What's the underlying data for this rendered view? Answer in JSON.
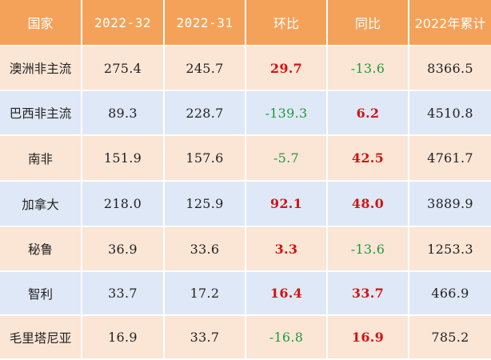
{
  "headers": [
    "国家",
    "2022-32",
    "2022-31",
    "环比",
    "同比",
    "2022年累计"
  ],
  "rows": [
    {
      "country": "澳洲非主流",
      "w32": "275.4",
      "w31": "245.7",
      "wow": "29.7",
      "yoy": "-13.6",
      "ytd": "8366.5",
      "wow_sign": "pos",
      "yoy_sign": "neg"
    },
    {
      "country": "巴西非主流",
      "w32": "89.3",
      "w31": "228.7",
      "wow": "-139.3",
      "yoy": "6.2",
      "ytd": "4510.8",
      "wow_sign": "neg",
      "yoy_sign": "pos"
    },
    {
      "country": "南非",
      "w32": "151.9",
      "w31": "157.6",
      "wow": "-5.7",
      "yoy": "42.5",
      "ytd": "4761.7",
      "wow_sign": "neg",
      "yoy_sign": "pos"
    },
    {
      "country": "加拿大",
      "w32": "218.0",
      "w31": "125.9",
      "wow": "92.1",
      "yoy": "48.0",
      "ytd": "3889.9",
      "wow_sign": "pos",
      "yoy_sign": "pos"
    },
    {
      "country": "秘鲁",
      "w32": "36.9",
      "w31": "33.6",
      "wow": "3.3",
      "yoy": "-13.6",
      "ytd": "1253.3",
      "wow_sign": "pos",
      "yoy_sign": "neg"
    },
    {
      "country": "智利",
      "w32": "33.7",
      "w31": "17.2",
      "wow": "16.4",
      "yoy": "33.7",
      "ytd": "466.9",
      "wow_sign": "pos",
      "yoy_sign": "pos"
    },
    {
      "country": "毛里塔尼亚",
      "w32": "16.9",
      "w31": "33.7",
      "wow": "-16.8",
      "yoy": "16.9",
      "ytd": "785.2",
      "wow_sign": "neg",
      "yoy_sign": "pos"
    }
  ],
  "colors": {
    "header_bg": "#f4a25a",
    "row_odd_bg": "#fbe5d5",
    "row_even_bg": "#dfe8f6",
    "positive_text": "#d01414",
    "negative_text": "#1f9a3c"
  }
}
